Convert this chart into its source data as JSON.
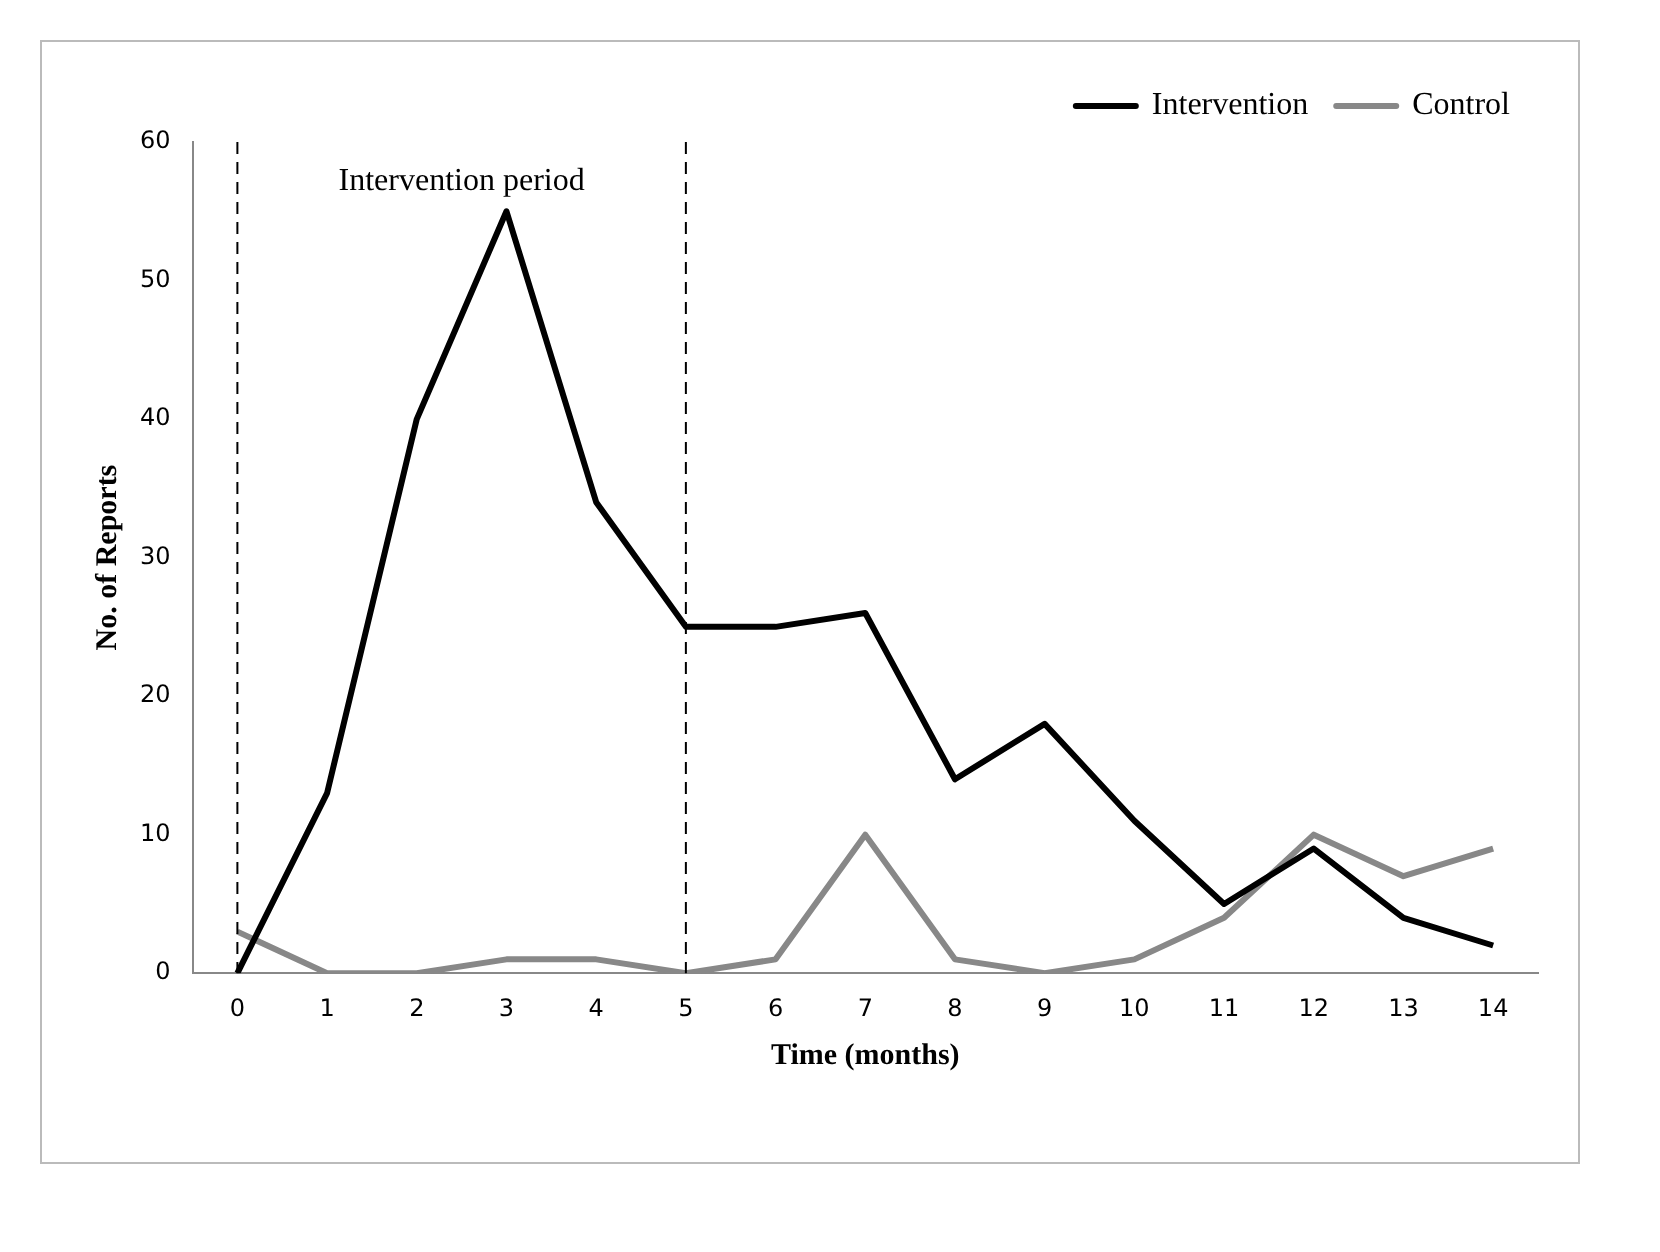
{
  "chart_data": {
    "type": "line",
    "xlabel": "Time (months)",
    "ylabel": "No. of Reports",
    "x": [
      0,
      1,
      2,
      3,
      4,
      5,
      6,
      7,
      8,
      9,
      10,
      11,
      12,
      13,
      14
    ],
    "series": [
      {
        "name": "Intervention",
        "color": "#000000",
        "values": [
          0,
          13,
          40,
          55,
          34,
          25,
          25,
          26,
          14,
          18,
          11,
          5,
          9,
          4,
          2
        ]
      },
      {
        "name": "Control",
        "color": "#888888",
        "values": [
          3,
          0,
          0,
          1,
          1,
          0,
          1,
          10,
          1,
          0,
          1,
          4,
          10,
          7,
          9
        ]
      }
    ],
    "xlim": [
      -0.5,
      14.5
    ],
    "xticks": [
      0,
      1,
      2,
      3,
      4,
      5,
      6,
      7,
      8,
      9,
      10,
      11,
      12,
      13,
      14
    ],
    "ylim": [
      0,
      60
    ],
    "yticks": [
      0,
      10,
      20,
      30,
      40,
      50,
      60
    ],
    "ref_lines": [
      {
        "axis": "x",
        "value": 0,
        "line_style": "dashed",
        "color": "#000000"
      },
      {
        "axis": "x",
        "value": 5,
        "line_style": "dashed",
        "color": "#000000"
      }
    ],
    "annotations": [
      "Intervention period"
    ],
    "grid": false,
    "legend": "top right",
    "marker": "none",
    "line_style": "solid"
  }
}
